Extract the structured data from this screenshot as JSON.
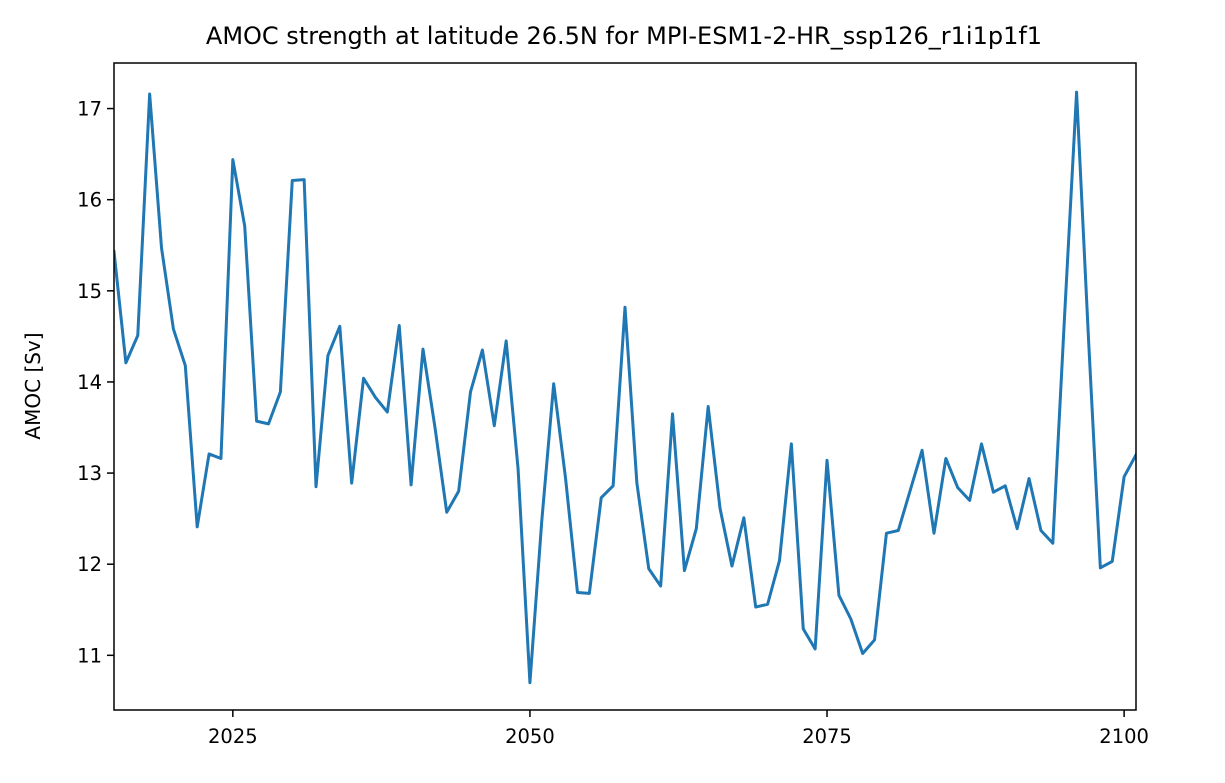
{
  "chart_data": {
    "type": "line",
    "title": "AMOC strength at latitude 26.5N for MPI-ESM1-2-HR_ssp126_r1i1p1f1",
    "xlabel": "",
    "ylabel": "AMOC [Sv]",
    "xlim": [
      2015,
      2101
    ],
    "ylim": [
      10.4,
      17.5
    ],
    "xticks": [
      2025,
      2050,
      2075,
      2100
    ],
    "yticks": [
      11,
      12,
      13,
      14,
      15,
      16,
      17
    ],
    "grid": false,
    "line_color": "#1f77b4",
    "x": [
      2015,
      2016,
      2017,
      2018,
      2019,
      2020,
      2021,
      2022,
      2023,
      2024,
      2025,
      2026,
      2027,
      2028,
      2029,
      2030,
      2031,
      2032,
      2033,
      2034,
      2035,
      2036,
      2037,
      2038,
      2039,
      2040,
      2041,
      2042,
      2043,
      2044,
      2045,
      2046,
      2047,
      2048,
      2049,
      2050,
      2051,
      2052,
      2053,
      2054,
      2055,
      2056,
      2057,
      2058,
      2059,
      2060,
      2061,
      2062,
      2063,
      2064,
      2065,
      2066,
      2067,
      2068,
      2069,
      2070,
      2071,
      2072,
      2073,
      2074,
      2075,
      2076,
      2077,
      2078,
      2079,
      2080,
      2081,
      2082,
      2083,
      2084,
      2085,
      2086,
      2087,
      2088,
      2089,
      2090,
      2091,
      2092,
      2093,
      2094,
      2095,
      2096,
      2097,
      2098,
      2099,
      2100,
      2101
    ],
    "series": [
      {
        "values": [
          15.43,
          14.21,
          14.51,
          17.16,
          15.47,
          14.58,
          14.18,
          12.41,
          13.21,
          13.16,
          16.44,
          15.71,
          13.57,
          13.54,
          13.89,
          16.21,
          16.22,
          12.85,
          14.29,
          14.61,
          12.89,
          14.04,
          13.83,
          13.67,
          14.62,
          12.87,
          14.36,
          13.51,
          12.57,
          12.8,
          13.89,
          14.35,
          13.52,
          14.45,
          13.05,
          10.7,
          12.48,
          13.98,
          12.94,
          11.69,
          11.68,
          12.73,
          12.86,
          14.82,
          12.89,
          11.95,
          11.76,
          13.65,
          11.93,
          12.39,
          13.73,
          12.61,
          11.98,
          12.51,
          11.53,
          11.56,
          12.04,
          13.32,
          11.29,
          11.07,
          13.14,
          11.66,
          11.4,
          11.02,
          11.17,
          12.34,
          12.37,
          12.81,
          13.25,
          12.34,
          13.16,
          12.84,
          12.7,
          13.32,
          12.79,
          12.86,
          12.39,
          12.94,
          12.37,
          12.23,
          14.75,
          17.18,
          14.48,
          11.96,
          12.03,
          12.96,
          13.2
        ]
      }
    ]
  }
}
